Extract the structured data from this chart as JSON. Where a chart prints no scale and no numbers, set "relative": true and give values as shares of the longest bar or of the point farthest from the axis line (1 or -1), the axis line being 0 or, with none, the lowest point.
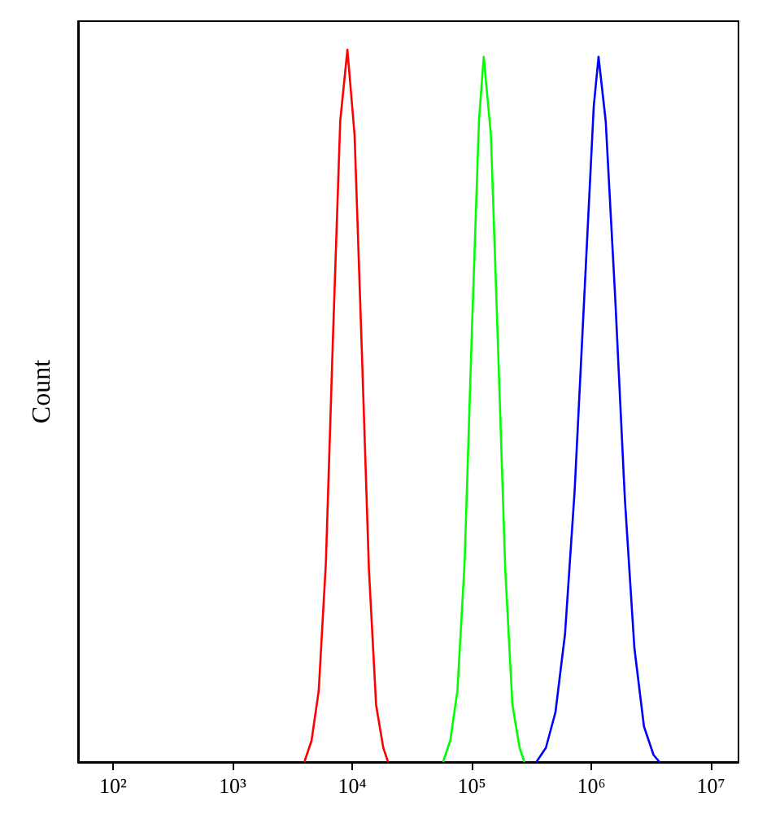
{
  "chart_data": {
    "type": "line",
    "ylabel": "Count",
    "relative": true,
    "log": "x",
    "grid": false,
    "marker": "none",
    "line_style": "solid",
    "xlim": [
      51,
      17000000
    ],
    "xticks": [
      {
        "value": 100,
        "label": "10²"
      },
      {
        "value": 1000,
        "label": "10³"
      },
      {
        "value": 10000,
        "label": "10⁴"
      },
      {
        "value": 100000,
        "label": "10⁵"
      },
      {
        "value": 1000000,
        "label": "10⁶"
      },
      {
        "value": 10000000,
        "label": "10⁷"
      }
    ],
    "series": [
      {
        "color": "#ff0000",
        "x": [
          3981,
          4571,
          5248,
          6026,
          6918,
          7943,
          9120,
          10471,
          12023,
          13804,
          15849,
          18197,
          19953
        ],
        "values": [
          0,
          0.03,
          0.1,
          0.28,
          0.6,
          0.9,
          1,
          0.88,
          0.58,
          0.27,
          0.08,
          0.02,
          0
        ]
      },
      {
        "color": "#00ff00",
        "x": [
          57544,
          66069,
          75858,
          87096,
          100000,
          114815,
          125893,
          144544,
          165959,
          190546,
          218776,
          251189,
          275423
        ],
        "values": [
          0,
          0.03,
          0.1,
          0.28,
          0.6,
          0.9,
          0.99,
          0.88,
          0.58,
          0.27,
          0.08,
          0.02,
          0
        ]
      },
      {
        "color": "#0000ff",
        "x": [
          346737,
          416869,
          501187,
          602560,
          724436,
          870964,
          1047129,
          1148154,
          1318257,
          1584893,
          1905461,
          2290868,
          2754229,
          3311311,
          3715352
        ],
        "values": [
          0,
          0.02,
          0.07,
          0.18,
          0.38,
          0.65,
          0.92,
          0.99,
          0.9,
          0.65,
          0.37,
          0.16,
          0.05,
          0.01,
          0
        ]
      }
    ]
  }
}
